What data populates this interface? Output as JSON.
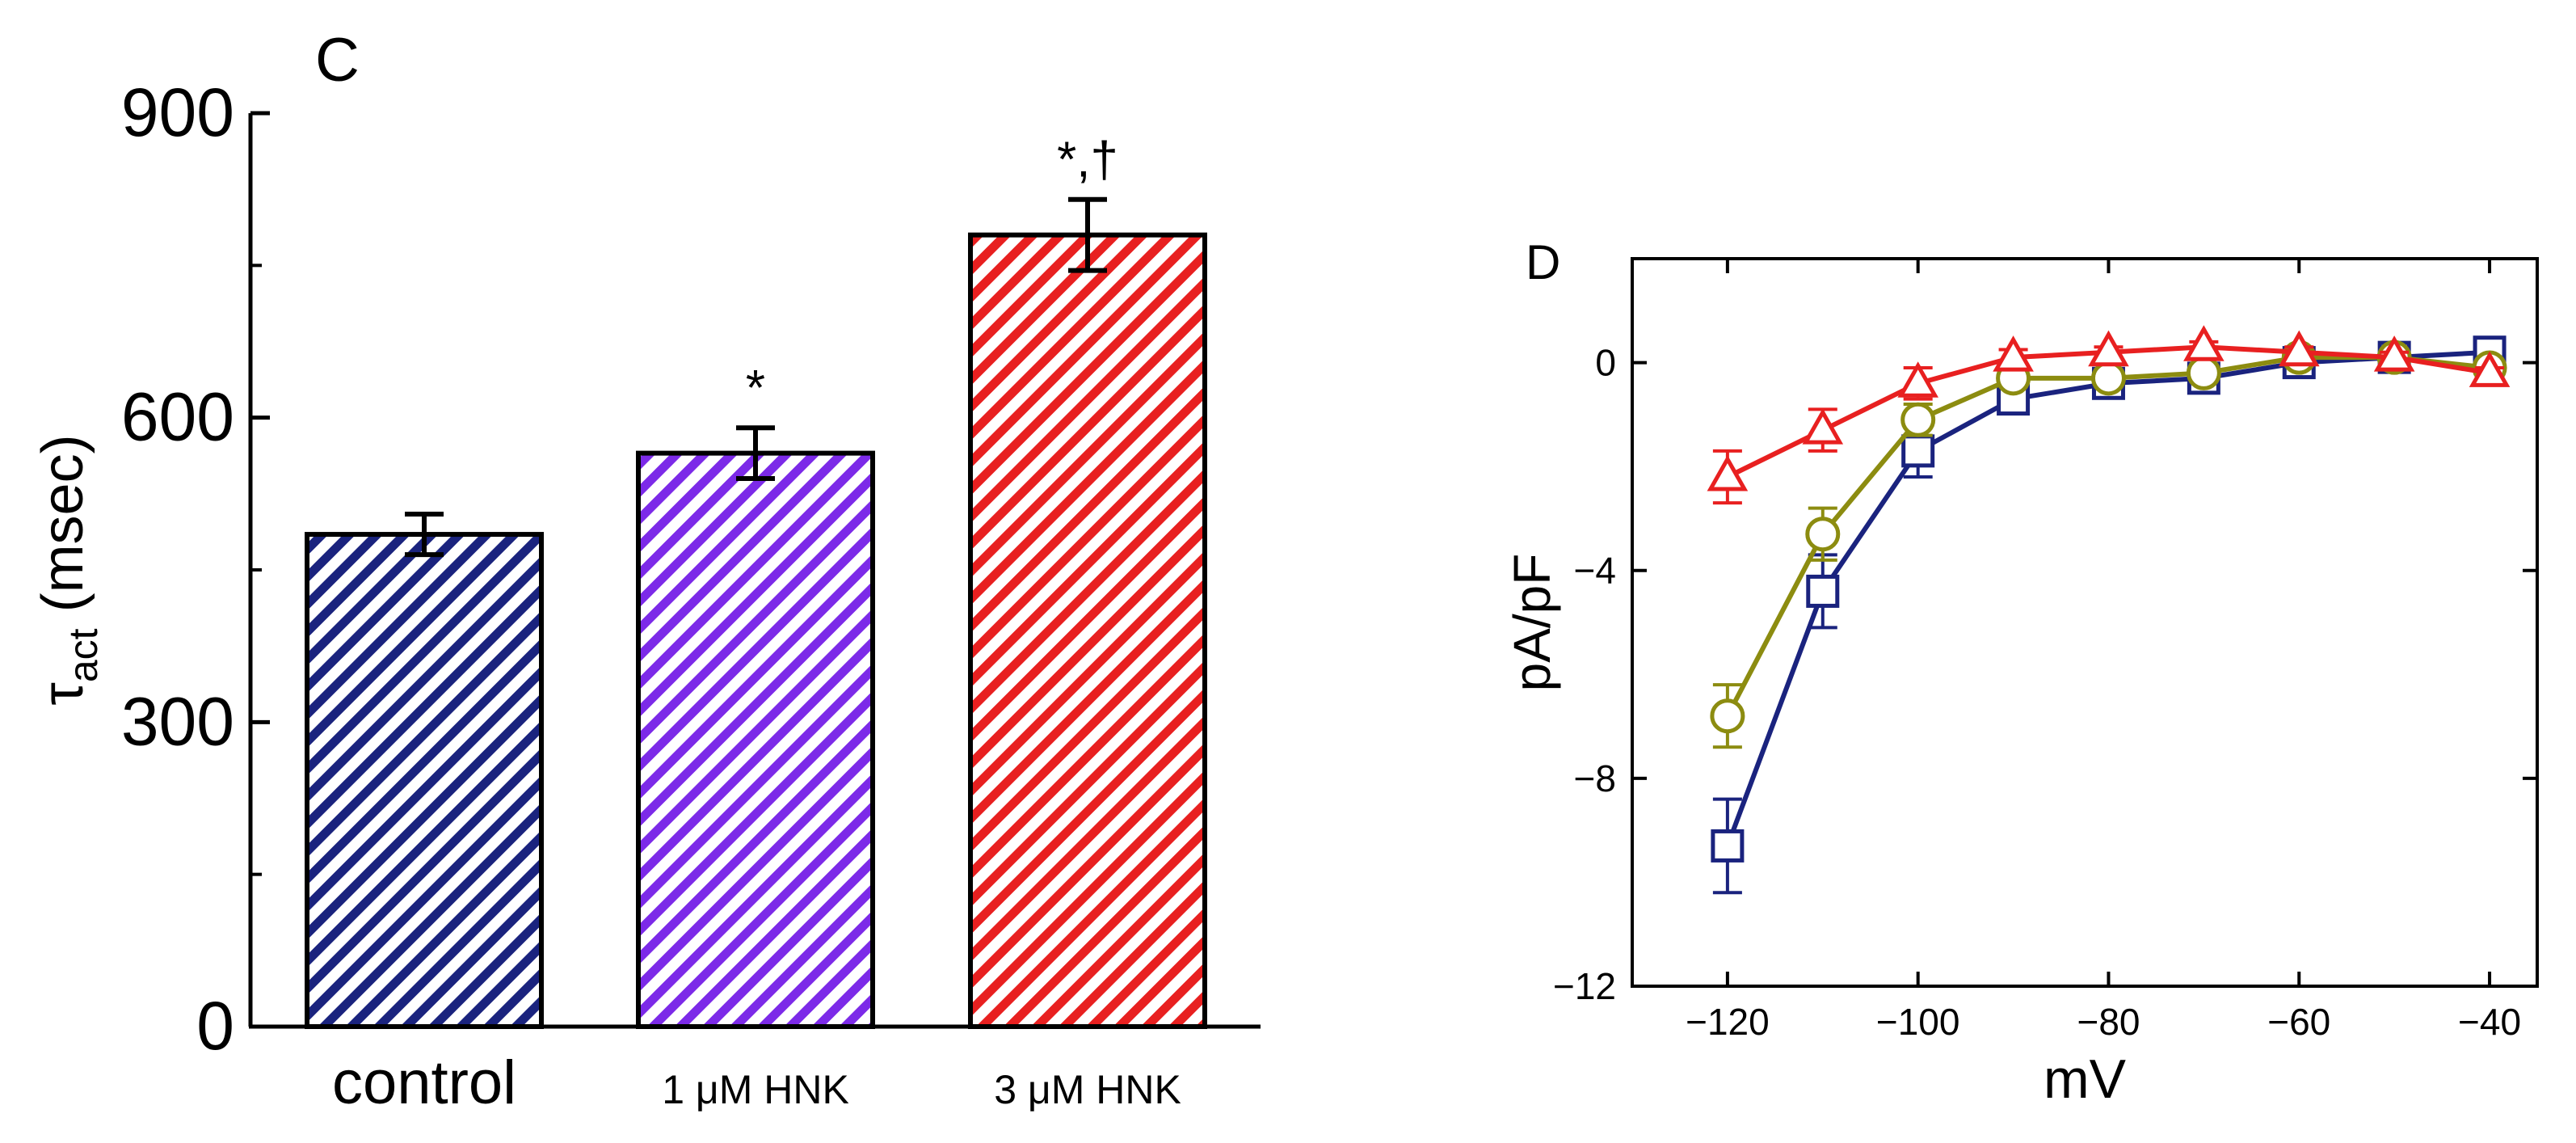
{
  "chart_data": [
    {
      "panel_label": "C",
      "type": "bar",
      "ylabel_symbol": "τ",
      "ylabel_subscript": "act",
      "ylabel_unit": "(msec)",
      "ylim": [
        0,
        900
      ],
      "yticks": [
        0,
        300,
        600,
        900
      ],
      "categories": [
        "control",
        "1 μM HNK",
        "3 μM HNK"
      ],
      "values": [
        485,
        565,
        780
      ],
      "errors": [
        20,
        25,
        35
      ],
      "significance": [
        "",
        "*",
        "*,†"
      ],
      "bar_colors": [
        "#1a237e",
        "#7c2ae8",
        "#e82020"
      ],
      "fill_pattern": "diagonal-hatch"
    },
    {
      "panel_label": "D",
      "type": "line",
      "xlabel": "mV",
      "ylabel": "pA/pF",
      "xlim": [
        -130,
        -35
      ],
      "ylim": [
        -12,
        2
      ],
      "xticks": [
        -120,
        -100,
        -80,
        -60,
        -40
      ],
      "yticks": [
        0,
        -4,
        -8,
        -12
      ],
      "x": [
        -120,
        -110,
        -100,
        -90,
        -80,
        -70,
        -60,
        -50,
        -40
      ],
      "series": [
        {
          "name": "control",
          "color": "#1a237e",
          "marker": "square",
          "values": [
            -9.3,
            -4.4,
            -1.7,
            -0.7,
            -0.4,
            -0.3,
            0.0,
            0.1,
            0.2
          ],
          "errors": [
            0.9,
            0.7,
            0.5,
            0.2,
            0.15,
            0.15,
            0.1,
            0.1,
            0.1
          ]
        },
        {
          "name": "1 μM HNK",
          "color": "#8c8c10",
          "marker": "circle",
          "values": [
            -6.8,
            -3.3,
            -1.1,
            -0.3,
            -0.3,
            -0.2,
            0.1,
            0.1,
            -0.1
          ],
          "errors": [
            0.6,
            0.5,
            0.3,
            0.15,
            0.1,
            0.1,
            0.1,
            0.1,
            0.1
          ]
        },
        {
          "name": "3 μM HNK",
          "color": "#e82020",
          "marker": "triangle",
          "values": [
            -2.2,
            -1.3,
            -0.4,
            0.1,
            0.2,
            0.3,
            0.2,
            0.1,
            -0.2
          ],
          "errors": [
            0.5,
            0.4,
            0.3,
            0.15,
            0.1,
            0.1,
            0.1,
            0.1,
            0.1
          ]
        }
      ]
    }
  ]
}
